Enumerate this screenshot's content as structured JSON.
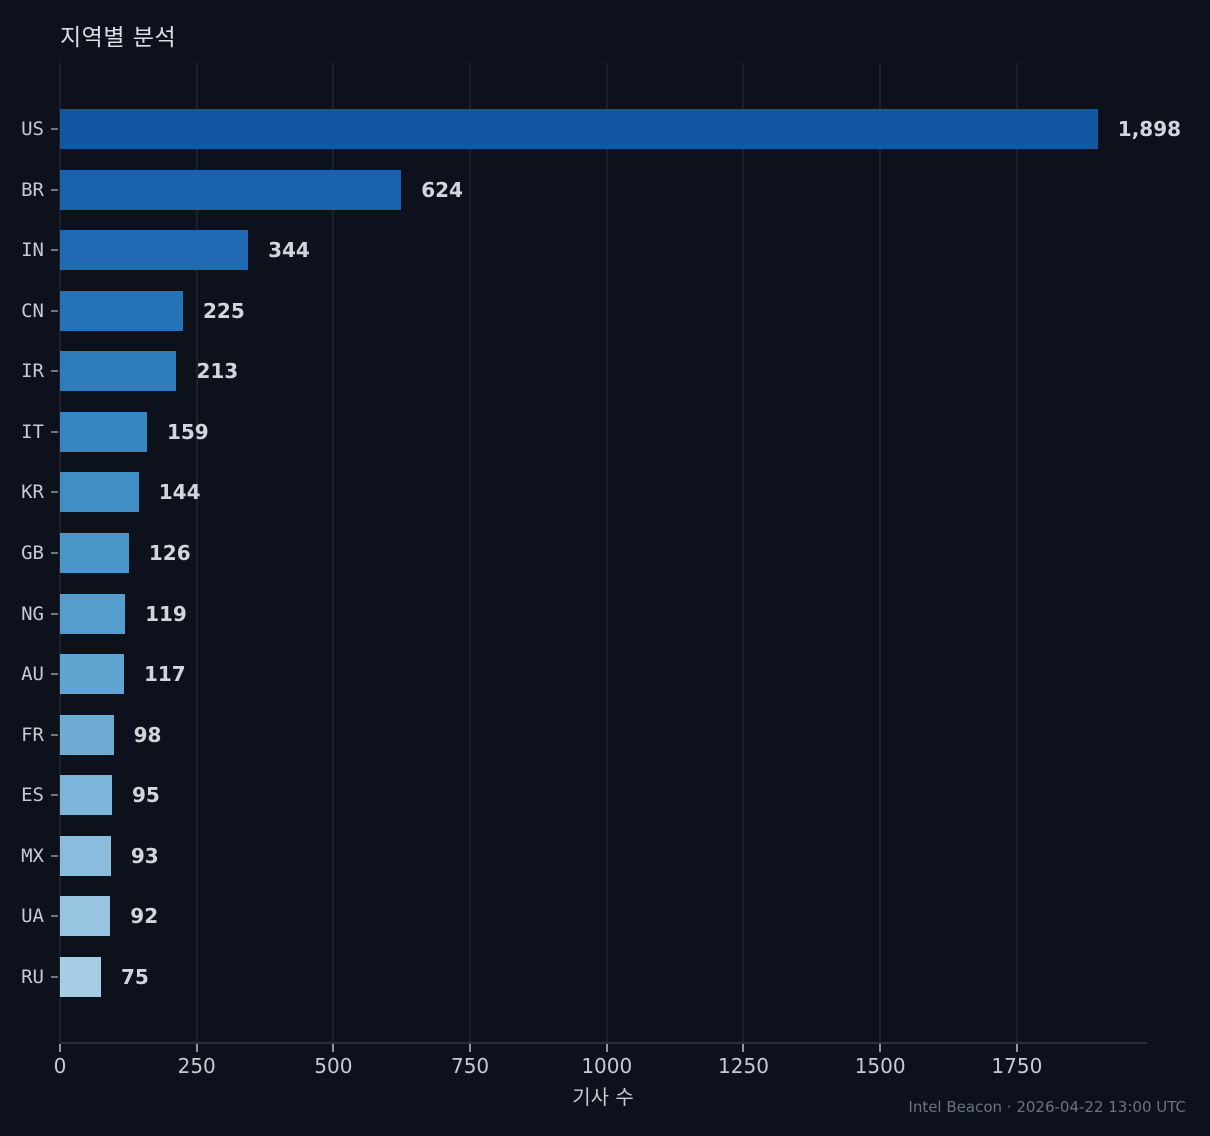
{
  "title": "지역별 분석",
  "footer": {
    "text": "Intel Beacon · 2026-04-22 13:00 UTC"
  },
  "colors": {
    "background": "#0d111b",
    "gridline": "#1b212d",
    "axis_spine": "#273041",
    "tick_mark": "#8f97a1",
    "text_primary": "#d9dfe6",
    "text_tick": "#c4cbd3",
    "text_value": "#d0d6dc",
    "text_footer": "#6a7380"
  },
  "chart_data": {
    "type": "bar",
    "orientation": "horizontal",
    "title": "지역별 분석",
    "xlabel": "기사 수",
    "ylabel": "",
    "categories": [
      "US",
      "BR",
      "IN",
      "CN",
      "IR",
      "IT",
      "KR",
      "GB",
      "NG",
      "AU",
      "FR",
      "ES",
      "MX",
      "UA",
      "RU"
    ],
    "values": [
      1898,
      624,
      344,
      225,
      213,
      159,
      144,
      126,
      119,
      117,
      98,
      95,
      93,
      92,
      75
    ],
    "value_labels": [
      "1,898",
      "624",
      "344",
      "225",
      "213",
      "159",
      "144",
      "126",
      "119",
      "117",
      "98",
      "95",
      "93",
      "92",
      "75"
    ],
    "bar_colors": [
      "#1257a2",
      "#1b62ac",
      "#2169b2",
      "#2572b7",
      "#2e7cbc",
      "#3785c0",
      "#408ec5",
      "#4b96c9",
      "#559dcd",
      "#61a4d1",
      "#6eacd5",
      "#7cb5d9",
      "#8abddd",
      "#97c5e1",
      "#a5cde4"
    ],
    "xlim": [
      0,
      1988
    ],
    "x_ticks": [
      0,
      250,
      500,
      750,
      1000,
      1250,
      1500,
      1750
    ],
    "grid": "vertical",
    "legend": "none"
  }
}
